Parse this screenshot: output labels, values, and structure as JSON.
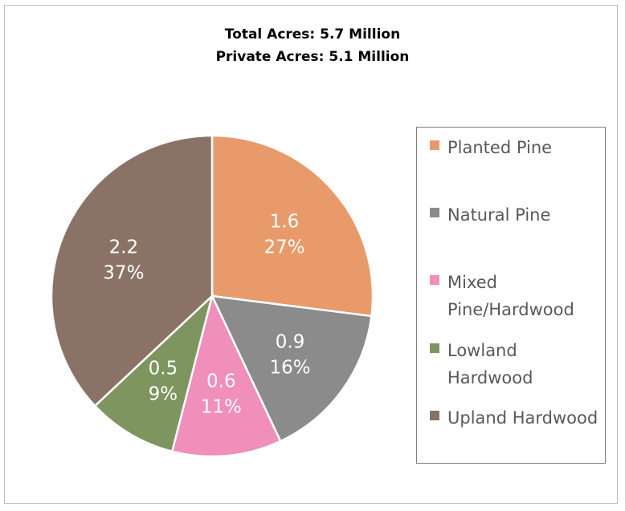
{
  "header": {
    "line1": "Total Acres: 5.7 Million",
    "line2": "Private Acres: 5.1 Million"
  },
  "chart_data": {
    "type": "pie",
    "legend_position": "right",
    "slices": [
      {
        "name": "Planted Pine",
        "value": 1.6,
        "percent": 27,
        "value_label": "1.6",
        "percent_label": "27%",
        "color": "#E89A6A"
      },
      {
        "name": "Natural Pine",
        "value": 0.9,
        "percent": 16,
        "value_label": "0.9",
        "percent_label": "16%",
        "color": "#8B8B8B"
      },
      {
        "name": "Mixed Pine/Hardwood",
        "value": 0.6,
        "percent": 11,
        "value_label": "0.6",
        "percent_label": "11%",
        "color": "#F08EBC"
      },
      {
        "name": "Lowland Hardwood",
        "value": 0.5,
        "percent": 9,
        "value_label": "0.5",
        "percent_label": "9%",
        "color": "#7E9560"
      },
      {
        "name": "Upland Hardwood",
        "value": 2.2,
        "percent": 37,
        "value_label": "2.2",
        "percent_label": "37%",
        "color": "#8A7366"
      }
    ]
  }
}
